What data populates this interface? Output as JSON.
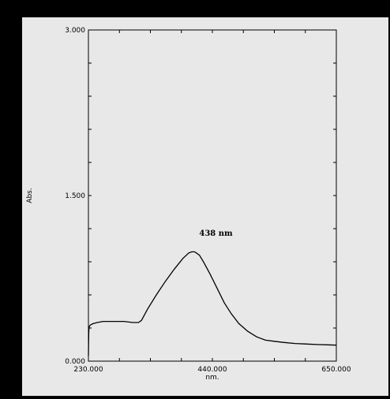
{
  "chart_data": {
    "type": "line",
    "title": "",
    "xlabel": "nm.",
    "ylabel": "Abs.",
    "xlim": [
      230,
      650
    ],
    "ylim": [
      0,
      3
    ],
    "x_ticks": [
      230,
      440,
      650
    ],
    "x_tick_labels": [
      "230.000",
      "440.000",
      "650.000"
    ],
    "y_ticks": [
      0,
      1.5,
      3
    ],
    "y_tick_labels": [
      "0.000",
      "1.500",
      "3.000"
    ],
    "grid": false,
    "annotation": {
      "text": "438 nm",
      "x": 438,
      "y": 1.05
    },
    "series": [
      {
        "color": "#000000",
        "points": [
          [
            230,
            0.05
          ],
          [
            230.5,
            0.25
          ],
          [
            231,
            0.3
          ],
          [
            232,
            0.32
          ],
          [
            234,
            0.33
          ],
          [
            238,
            0.34
          ],
          [
            245,
            0.35
          ],
          [
            255,
            0.36
          ],
          [
            270,
            0.36
          ],
          [
            290,
            0.36
          ],
          [
            305,
            0.35
          ],
          [
            315,
            0.35
          ],
          [
            320,
            0.37
          ],
          [
            330,
            0.47
          ],
          [
            345,
            0.6
          ],
          [
            360,
            0.72
          ],
          [
            375,
            0.83
          ],
          [
            390,
            0.93
          ],
          [
            400,
            0.98
          ],
          [
            405,
            0.99
          ],
          [
            410,
            0.99
          ],
          [
            418,
            0.96
          ],
          [
            426,
            0.89
          ],
          [
            436,
            0.79
          ],
          [
            448,
            0.66
          ],
          [
            460,
            0.53
          ],
          [
            472,
            0.43
          ],
          [
            485,
            0.34
          ],
          [
            500,
            0.27
          ],
          [
            515,
            0.22
          ],
          [
            530,
            0.19
          ],
          [
            545,
            0.18
          ],
          [
            560,
            0.17
          ],
          [
            580,
            0.16
          ],
          [
            600,
            0.155
          ],
          [
            620,
            0.15
          ],
          [
            635,
            0.148
          ],
          [
            650,
            0.145
          ]
        ]
      }
    ]
  }
}
